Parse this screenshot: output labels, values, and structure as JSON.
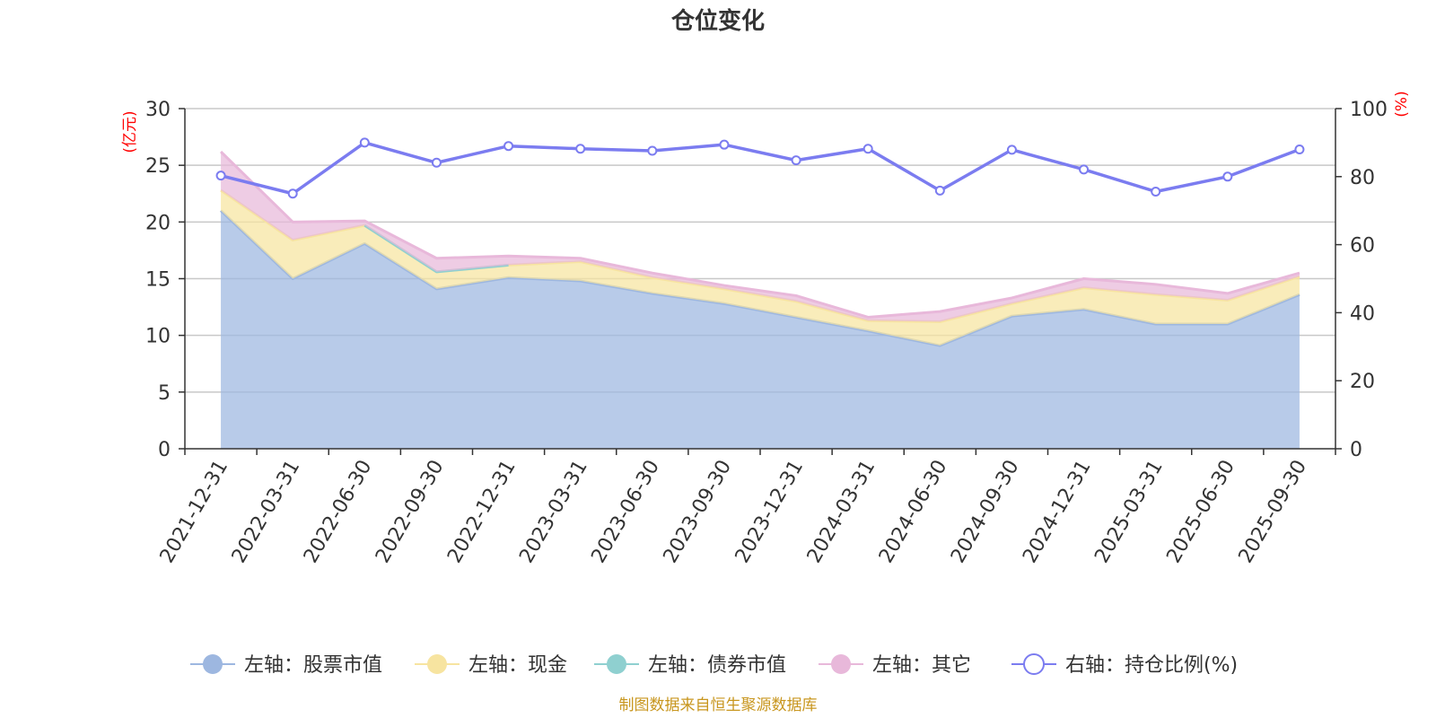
{
  "chart_data": {
    "type": "area",
    "title": "仓位变化",
    "left_axis_unit": "(亿元)",
    "right_axis_unit": "(%)",
    "categories": [
      "2021-12-31",
      "2022-03-31",
      "2022-06-30",
      "2022-09-30",
      "2022-12-31",
      "2023-03-31",
      "2023-06-30",
      "2023-09-30",
      "2023-12-31",
      "2024-03-31",
      "2024-06-30",
      "2024-09-30",
      "2024-12-31",
      "2025-03-31",
      "2025-06-30",
      "2025-09-30"
    ],
    "left_ylim": [
      0,
      30
    ],
    "left_ticks": [
      0,
      5,
      10,
      15,
      20,
      25,
      30
    ],
    "right_ylim": [
      0,
      100
    ],
    "right_ticks": [
      0,
      20,
      40,
      60,
      80,
      100
    ],
    "series": [
      {
        "name": "左轴：股票市值",
        "axis": "left",
        "stack": true,
        "color": "#9db7e0",
        "values": [
          21.0,
          15.0,
          18.1,
          14.1,
          15.1,
          14.8,
          13.7,
          12.8,
          11.6,
          10.4,
          9.1,
          11.7,
          12.3,
          11.0,
          11.0,
          13.6
        ]
      },
      {
        "name": "左轴：现金",
        "axis": "left",
        "stack": true,
        "color": "#f7e4a0",
        "values": [
          1.8,
          3.4,
          1.6,
          1.5,
          1.1,
          1.7,
          1.4,
          1.3,
          1.4,
          0.9,
          2.1,
          1.1,
          1.9,
          2.6,
          2.1,
          1.6
        ]
      },
      {
        "name": "左轴：债券市值",
        "axis": "left",
        "stack": true,
        "color": "#8fd0d0",
        "values": [
          null,
          null,
          0.0,
          0.0,
          0.0,
          null,
          null,
          null,
          null,
          null,
          null,
          null,
          null,
          null,
          null,
          null
        ]
      },
      {
        "name": "左轴：其它",
        "axis": "left",
        "stack": true,
        "color": "#e8b8da",
        "values": [
          3.4,
          1.6,
          0.4,
          1.2,
          0.8,
          0.3,
          0.4,
          0.3,
          0.5,
          0.3,
          0.9,
          0.5,
          0.8,
          0.9,
          0.6,
          0.3
        ]
      },
      {
        "name": "右轴：持仓比例(%)",
        "axis": "right",
        "stack": false,
        "color": "#7b7cf0",
        "values": [
          80.3,
          75.0,
          90.0,
          84.1,
          89.0,
          88.2,
          87.6,
          89.4,
          84.8,
          88.2,
          75.9,
          87.9,
          82.1,
          75.6,
          80.0,
          88.0
        ]
      }
    ],
    "legend_position": "bottom",
    "grid": true,
    "source_note": "制图数据来自恒生聚源数据库"
  }
}
